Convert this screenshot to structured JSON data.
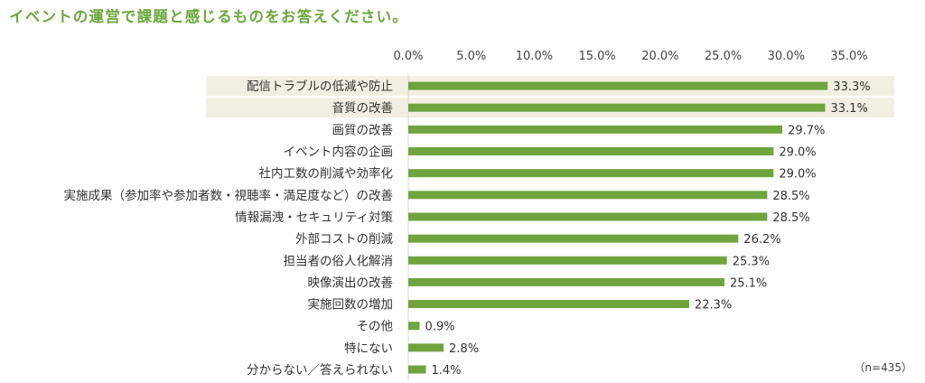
{
  "page": {
    "title": "イベントの運営で課題と感じるものをお答えください。",
    "sample_note": "（n=435）"
  },
  "colors": {
    "accent": "#6aa83a",
    "bar": "#6fa43f",
    "row_highlight": "#f2efe2",
    "text": "#333333"
  },
  "chart_data": {
    "type": "bar",
    "orientation": "horizontal",
    "title": "イベントの運営で課題と感じるものをお答えください。",
    "xlabel": "",
    "ylabel": "",
    "xlim": [
      0,
      35
    ],
    "ticks": [
      0,
      5,
      10,
      15,
      20,
      25,
      30,
      35
    ],
    "tick_labels": [
      "0.0%",
      "5.0%",
      "10.0%",
      "15.0%",
      "20.0%",
      "25.0%",
      "30.0%",
      "35.0%"
    ],
    "grid": false,
    "legend": "none",
    "highlighted_rows": [
      0,
      1
    ],
    "categories": [
      "配信トラブルの低減や防止",
      "音質の改善",
      "画質の改善",
      "イベント内容の企画",
      "社内工数の削減や効率化",
      "実施成果（参加率や参加者数・視聴率・満足度など）の改善",
      "情報漏洩・セキュリティ対策",
      "外部コストの削減",
      "担当者の俗人化解消",
      "映像演出の改善",
      "実施回数の増加",
      "その他",
      "特にない",
      "分からない／答えられない"
    ],
    "values": [
      33.3,
      33.1,
      29.7,
      29.0,
      29.0,
      28.5,
      28.5,
      26.2,
      25.3,
      25.1,
      22.3,
      0.9,
      2.8,
      1.4
    ],
    "value_labels": [
      "33.3%",
      "33.1%",
      "29.7%",
      "29.0%",
      "29.0%",
      "28.5%",
      "28.5%",
      "26.2%",
      "25.3%",
      "25.1%",
      "22.3%",
      "0.9%",
      "2.8%",
      "1.4%"
    ]
  }
}
